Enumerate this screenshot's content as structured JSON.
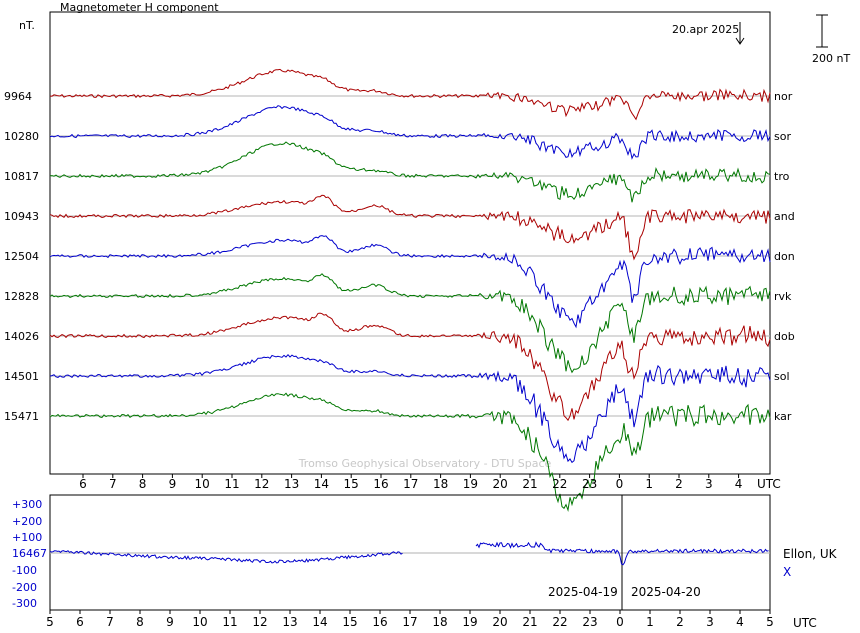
{
  "chart_data": [
    {
      "type": "line",
      "title": "Magnetometer H component",
      "ylabel": "nT.",
      "date_label": "20.apr 2025",
      "scale_bar_label": "200 nT",
      "watermark": "Tromso Geophysical Observatory - DTU Space",
      "x_unit": "UTC",
      "x_ticks": [
        "6",
        "7",
        "8",
        "9",
        "10",
        "11",
        "12",
        "13",
        "14",
        "15",
        "16",
        "17",
        "18",
        "19",
        "20",
        "21",
        "22",
        "23",
        "0",
        "1",
        "2",
        "3",
        "4"
      ],
      "grid": true,
      "stations": [
        {
          "code": "nor",
          "baseline": "9964",
          "color": "#aa0000"
        },
        {
          "code": "sor",
          "baseline": "10280",
          "color": "#0000cc"
        },
        {
          "code": "tro",
          "baseline": "10817",
          "color": "#007700"
        },
        {
          "code": "and",
          "baseline": "10943",
          "color": "#aa0000"
        },
        {
          "code": "don",
          "baseline": "12504",
          "color": "#0000cc"
        },
        {
          "code": "rvk",
          "baseline": "12828",
          "color": "#007700"
        },
        {
          "code": "dob",
          "baseline": "14026",
          "color": "#aa0000"
        },
        {
          "code": "sol",
          "baseline": "14501",
          "color": "#0000cc"
        },
        {
          "code": "kar",
          "baseline": "15471",
          "color": "#007700"
        }
      ]
    },
    {
      "type": "line",
      "station": "Ellon, UK",
      "component": "X",
      "baseline": "16467",
      "y_ticks": [
        "+300",
        "+200",
        "+100",
        "16467",
        "-100",
        "-200",
        "-300"
      ],
      "x_ticks": [
        "5",
        "6",
        "7",
        "8",
        "9",
        "10",
        "11",
        "12",
        "13",
        "14",
        "15",
        "16",
        "17",
        "18",
        "19",
        "20",
        "21",
        "22",
        "23",
        "0",
        "1",
        "2",
        "3",
        "4",
        "5"
      ],
      "x_unit": "UTC",
      "date_left": "2025-04-19",
      "date_right": "2025-04-20",
      "color": "#0000cc",
      "gap_hours": [
        "16.8",
        "19.2"
      ]
    }
  ]
}
